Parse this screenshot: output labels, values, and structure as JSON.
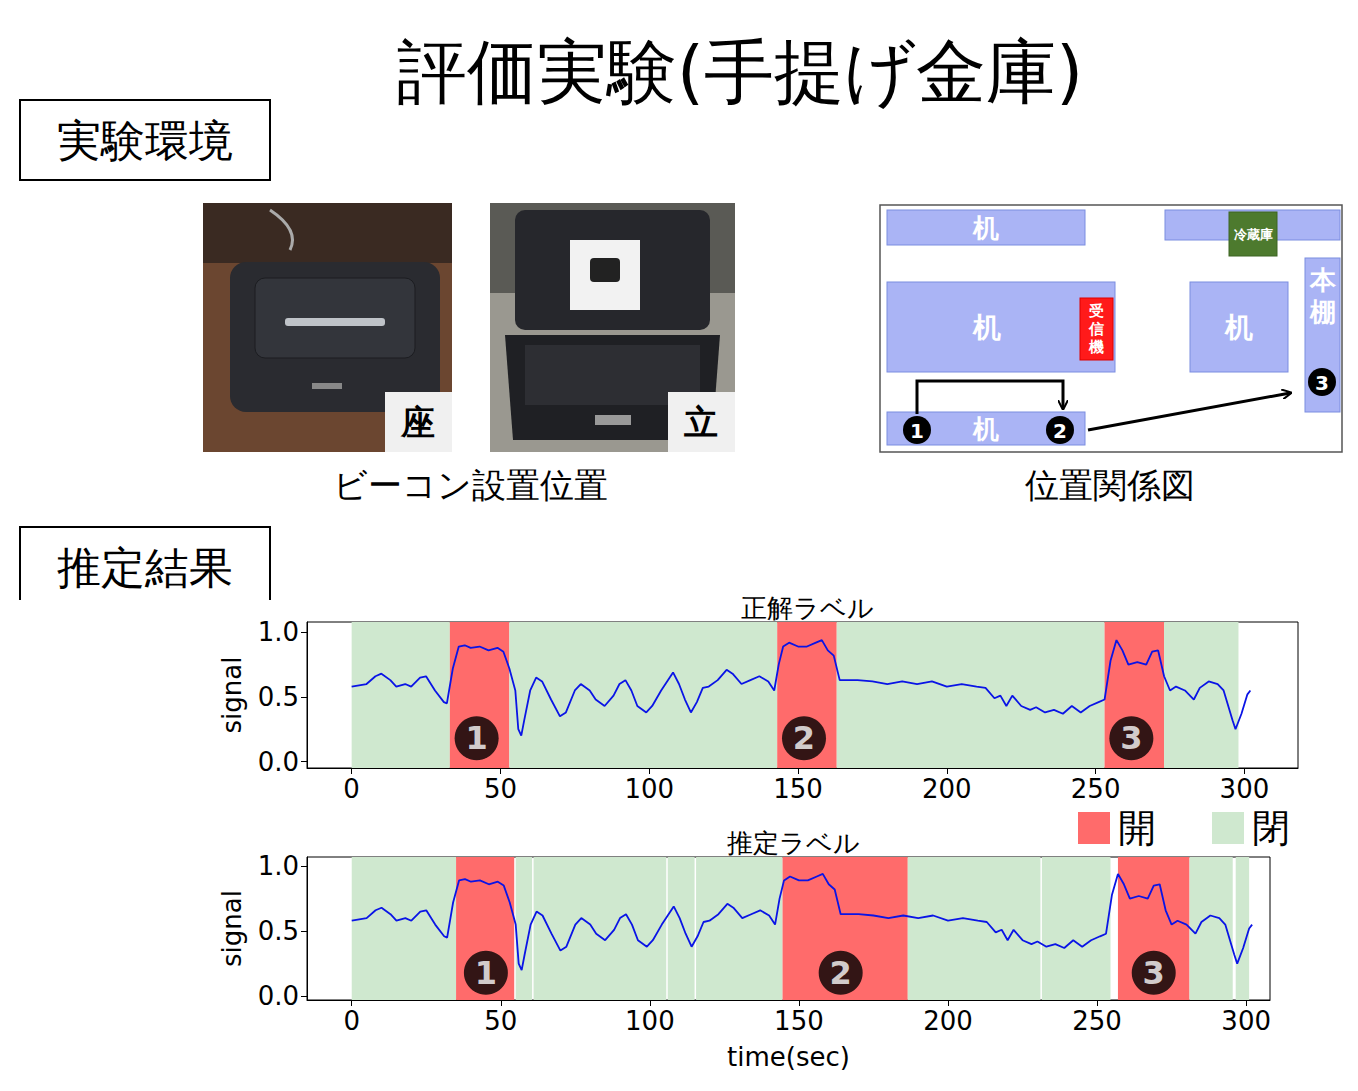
{
  "title": "評価実験(手提げ金庫)",
  "sections": [
    "実験環境",
    "推定結果"
  ],
  "photos": {
    "caption": "ビーコン設置位置",
    "panels": [
      {
        "label": "座"
      },
      {
        "label": "立"
      }
    ]
  },
  "diagram": {
    "caption": "位置関係図",
    "items": [
      {
        "label": "机"
      },
      {
        "label": "冷蔵庫"
      },
      {
        "label": "机"
      },
      {
        "label": "受信機"
      },
      {
        "label": "机"
      },
      {
        "label": "本棚"
      },
      {
        "label": "机"
      }
    ],
    "markers": [
      "1",
      "2",
      "3"
    ]
  },
  "states": [
    {
      "name": "開",
      "color": "#ff6b6b"
    },
    {
      "name": "閉",
      "color": "#cfe8cf"
    }
  ],
  "chart_data": [
    {
      "type": "line",
      "title": "正解ラベル",
      "y_label": "signal",
      "xlim": [
        -15,
        318
      ],
      "xticks": [
        0,
        50,
        100,
        150,
        200,
        250,
        300
      ],
      "ylim": [
        -0.05,
        1.08
      ],
      "yticks": [
        {
          "value": 0,
          "label": "0.0"
        },
        {
          "value": 0.5,
          "label": "0.5"
        },
        {
          "value": 1,
          "label": "1.0"
        }
      ],
      "grid": false,
      "series": [
        {
          "name": "signal",
          "color": "#0a14e6",
          "line_style": "solid",
          "x": [
            0,
            5,
            8,
            10,
            13,
            15,
            18,
            20,
            23,
            25,
            28,
            31,
            32,
            34,
            36,
            38,
            40,
            43,
            46,
            49,
            51,
            53,
            55,
            56,
            57,
            58,
            60,
            62,
            64,
            67,
            70,
            72,
            75,
            77,
            80,
            82,
            85,
            88,
            90,
            92,
            94,
            96,
            99,
            101,
            104,
            106,
            108,
            110,
            112,
            114,
            116,
            118,
            120,
            123,
            126,
            128,
            131,
            134,
            137,
            140,
            142,
            143.5,
            145,
            147,
            150,
            153,
            156,
            158,
            160,
            162,
            164,
            170,
            175,
            180,
            185,
            190,
            195,
            200,
            205,
            210,
            213,
            216,
            218,
            220,
            222,
            225,
            228,
            230,
            233,
            236,
            239,
            242,
            245,
            248,
            251,
            253,
            255,
            257,
            259,
            261,
            264,
            267,
            269,
            271,
            273,
            275,
            277,
            280,
            283,
            285,
            288,
            291,
            293,
            296,
            297,
            299,
            301,
            302
          ],
          "values": [
            0.58,
            0.6,
            0.66,
            0.68,
            0.63,
            0.58,
            0.6,
            0.58,
            0.65,
            0.66,
            0.55,
            0.46,
            0.45,
            0.72,
            0.89,
            0.9,
            0.88,
            0.89,
            0.86,
            0.88,
            0.85,
            0.72,
            0.55,
            0.25,
            0.2,
            0.32,
            0.55,
            0.65,
            0.62,
            0.48,
            0.35,
            0.38,
            0.55,
            0.6,
            0.55,
            0.48,
            0.43,
            0.51,
            0.6,
            0.63,
            0.55,
            0.43,
            0.38,
            0.43,
            0.55,
            0.62,
            0.69,
            0.6,
            0.48,
            0.38,
            0.46,
            0.57,
            0.58,
            0.63,
            0.71,
            0.68,
            0.6,
            0.63,
            0.66,
            0.62,
            0.55,
            0.75,
            0.89,
            0.92,
            0.89,
            0.89,
            0.92,
            0.94,
            0.86,
            0.82,
            0.63,
            0.63,
            0.62,
            0.6,
            0.62,
            0.6,
            0.62,
            0.58,
            0.6,
            0.58,
            0.57,
            0.49,
            0.51,
            0.43,
            0.51,
            0.43,
            0.4,
            0.42,
            0.38,
            0.4,
            0.37,
            0.43,
            0.38,
            0.43,
            0.46,
            0.48,
            0.78,
            0.94,
            0.86,
            0.75,
            0.77,
            0.75,
            0.85,
            0.86,
            0.66,
            0.55,
            0.58,
            0.55,
            0.48,
            0.57,
            0.62,
            0.6,
            0.55,
            0.32,
            0.25,
            0.37,
            0.52,
            0.55
          ]
        }
      ],
      "segments": [
        {
          "start": 0,
          "end": 33,
          "state": "閉"
        },
        {
          "start": 33,
          "end": 53,
          "state": "開"
        },
        {
          "start": 53,
          "end": 143,
          "state": "閉"
        },
        {
          "start": 143,
          "end": 163,
          "state": "開"
        },
        {
          "start": 163,
          "end": 253,
          "state": "閉"
        },
        {
          "start": 253,
          "end": 273,
          "state": "開"
        },
        {
          "start": 273,
          "end": 298,
          "state": "閉"
        }
      ],
      "annotations": [
        {
          "x": 42,
          "y": 0.18,
          "text": "1"
        },
        {
          "x": 152,
          "y": 0.18,
          "text": "2"
        },
        {
          "x": 262,
          "y": 0.18,
          "text": "3"
        }
      ]
    },
    {
      "type": "line",
      "title": "推定ラベル",
      "x_label": "time(sec)",
      "y_label": "signal",
      "xlim": [
        -15,
        308
      ],
      "xticks": [
        0,
        50,
        100,
        150,
        200,
        250,
        300
      ],
      "ylim": [
        -0.03,
        1.07
      ],
      "yticks": [
        {
          "value": 0,
          "label": "0.0"
        },
        {
          "value": 0.5,
          "label": "0.5"
        },
        {
          "value": 1,
          "label": "1.0"
        }
      ],
      "grid": false,
      "series": [
        {
          "name": "signal",
          "color": "#0a14e6",
          "line_style": "solid",
          "x": [
            0,
            5,
            8,
            10,
            13,
            15,
            18,
            20,
            23,
            25,
            28,
            31,
            32,
            34,
            36,
            38,
            40,
            43,
            46,
            49,
            51,
            53,
            55,
            56,
            57,
            58,
            60,
            62,
            64,
            67,
            70,
            72,
            75,
            77,
            80,
            82,
            85,
            88,
            90,
            92,
            94,
            96,
            99,
            101,
            104,
            106,
            108,
            110,
            112,
            114,
            116,
            118,
            120,
            123,
            126,
            128,
            131,
            134,
            137,
            140,
            142,
            143.5,
            145,
            147,
            150,
            153,
            156,
            158,
            160,
            162,
            164,
            170,
            175,
            180,
            185,
            190,
            195,
            200,
            205,
            210,
            213,
            216,
            218,
            220,
            222,
            225,
            228,
            230,
            233,
            236,
            239,
            242,
            245,
            248,
            251,
            253,
            255,
            257,
            259,
            261,
            264,
            267,
            269,
            271,
            273,
            275,
            277,
            280,
            283,
            285,
            288,
            291,
            293,
            296,
            297,
            299,
            301,
            302
          ],
          "values": [
            0.58,
            0.6,
            0.66,
            0.68,
            0.63,
            0.58,
            0.6,
            0.58,
            0.65,
            0.66,
            0.55,
            0.46,
            0.45,
            0.72,
            0.89,
            0.9,
            0.88,
            0.89,
            0.86,
            0.88,
            0.85,
            0.72,
            0.55,
            0.25,
            0.2,
            0.32,
            0.55,
            0.65,
            0.62,
            0.48,
            0.35,
            0.38,
            0.55,
            0.6,
            0.55,
            0.48,
            0.43,
            0.51,
            0.6,
            0.63,
            0.55,
            0.43,
            0.38,
            0.43,
            0.55,
            0.62,
            0.69,
            0.6,
            0.48,
            0.38,
            0.46,
            0.57,
            0.58,
            0.63,
            0.71,
            0.68,
            0.6,
            0.63,
            0.66,
            0.62,
            0.55,
            0.75,
            0.89,
            0.92,
            0.89,
            0.89,
            0.92,
            0.94,
            0.86,
            0.82,
            0.63,
            0.63,
            0.62,
            0.6,
            0.62,
            0.6,
            0.62,
            0.58,
            0.6,
            0.58,
            0.57,
            0.49,
            0.51,
            0.43,
            0.51,
            0.43,
            0.4,
            0.42,
            0.38,
            0.4,
            0.37,
            0.43,
            0.38,
            0.43,
            0.46,
            0.48,
            0.78,
            0.94,
            0.86,
            0.75,
            0.77,
            0.75,
            0.85,
            0.86,
            0.66,
            0.55,
            0.58,
            0.55,
            0.48,
            0.57,
            0.62,
            0.6,
            0.55,
            0.32,
            0.25,
            0.37,
            0.52,
            0.55
          ]
        }
      ],
      "segments": [
        {
          "start": 0,
          "end": 35,
          "state": "閉"
        },
        {
          "start": 35,
          "end": 54.5,
          "state": "開"
        },
        {
          "start": 55,
          "end": 60.5,
          "state": "閉"
        },
        {
          "start": 61,
          "end": 105.5,
          "state": "閉"
        },
        {
          "start": 106,
          "end": 115,
          "state": "閉"
        },
        {
          "start": 115.5,
          "end": 144.5,
          "state": "閉"
        },
        {
          "start": 144.5,
          "end": 186.5,
          "state": "開"
        },
        {
          "start": 186.5,
          "end": 231,
          "state": "閉"
        },
        {
          "start": 231.5,
          "end": 254.5,
          "state": "閉"
        },
        {
          "start": 257,
          "end": 281,
          "state": "開"
        },
        {
          "start": 281,
          "end": 295.5,
          "state": "閉"
        },
        {
          "start": 296.5,
          "end": 301,
          "state": "閉"
        }
      ],
      "annotations": [
        {
          "x": 45,
          "y": 0.18,
          "text": "1"
        },
        {
          "x": 164,
          "y": 0.18,
          "text": "2"
        },
        {
          "x": 269,
          "y": 0.18,
          "text": "3"
        }
      ]
    }
  ]
}
